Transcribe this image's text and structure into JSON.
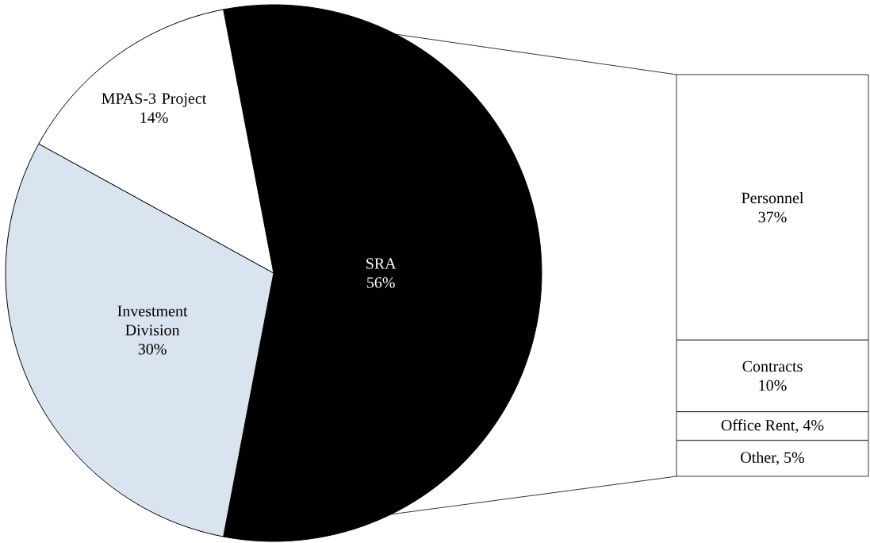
{
  "chart_data": [
    {
      "type": "pie",
      "categories": [
        "SRA",
        "Investment Division",
        "MPAS-3 Project"
      ],
      "values": [
        56,
        30,
        14
      ],
      "colors": [
        "#000000",
        "#dae3f0",
        "#ffffff"
      ],
      "value_labels": [
        "56%",
        "30%",
        "14%"
      ]
    },
    {
      "type": "bar",
      "stacked": true,
      "categories": [
        null
      ],
      "series": [
        {
          "color": "#ffffff",
          "values": [
            5
          ],
          "value_labels": [
            "Other, 5%"
          ]
        },
        {
          "color": "#ffffff",
          "values": [
            4
          ],
          "value_labels": [
            "Office Rent, 4%"
          ]
        },
        {
          "name": "Contracts",
          "color": "#ffffff",
          "values": [
            10
          ],
          "value_labels": [
            "10%"
          ]
        },
        {
          "name": "Personnel",
          "color": "#ffffff",
          "values": [
            37
          ],
          "value_labels": [
            "37%"
          ]
        }
      ]
    }
  ]
}
